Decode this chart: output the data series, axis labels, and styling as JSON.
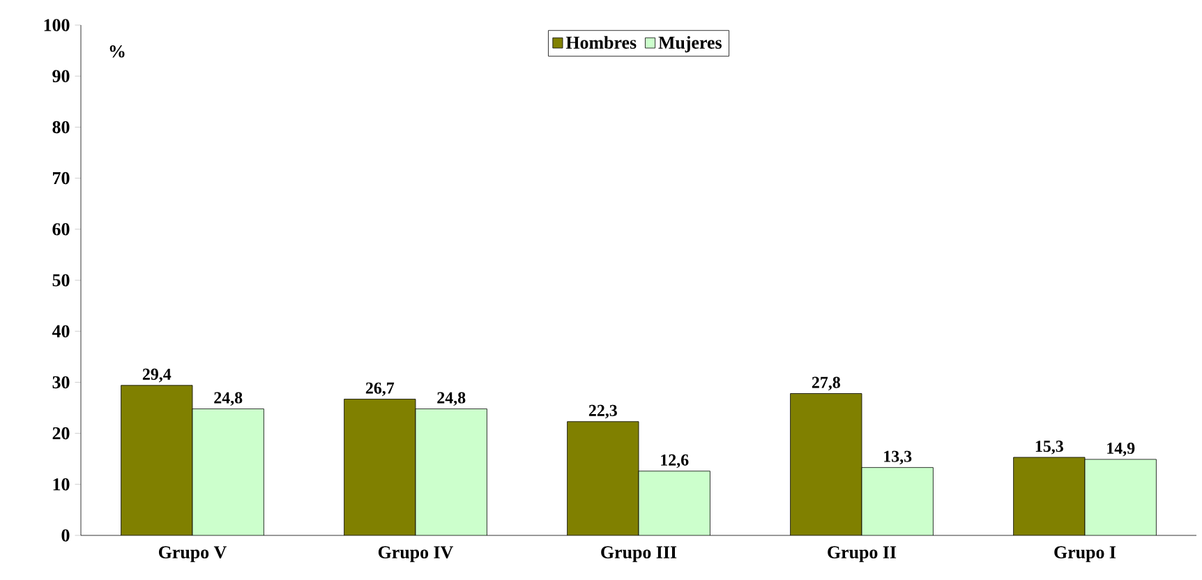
{
  "chart_data": {
    "type": "bar",
    "ylabel": "%",
    "categories": [
      "Grupo V",
      "Grupo IV",
      "Grupo III",
      "Grupo II",
      "Grupo I"
    ],
    "series": [
      {
        "name": "Hombres",
        "color": "#808000",
        "values": [
          29.4,
          26.7,
          22.3,
          27.8,
          15.3
        ],
        "value_labels": [
          "29,4",
          "26,7",
          "22,3",
          "27,8",
          "15,3"
        ]
      },
      {
        "name": "Mujeres",
        "color": "#ccffcc",
        "values": [
          24.8,
          24.8,
          12.6,
          13.3,
          14.9
        ],
        "value_labels": [
          "24,8",
          "24,8",
          "12,6",
          "13,3",
          "14,9"
        ]
      }
    ],
    "ylim": [
      0,
      100
    ],
    "yticks": [
      0,
      10,
      20,
      30,
      40,
      50,
      60,
      70,
      80,
      90,
      100
    ],
    "grid": false,
    "legend": "top"
  }
}
